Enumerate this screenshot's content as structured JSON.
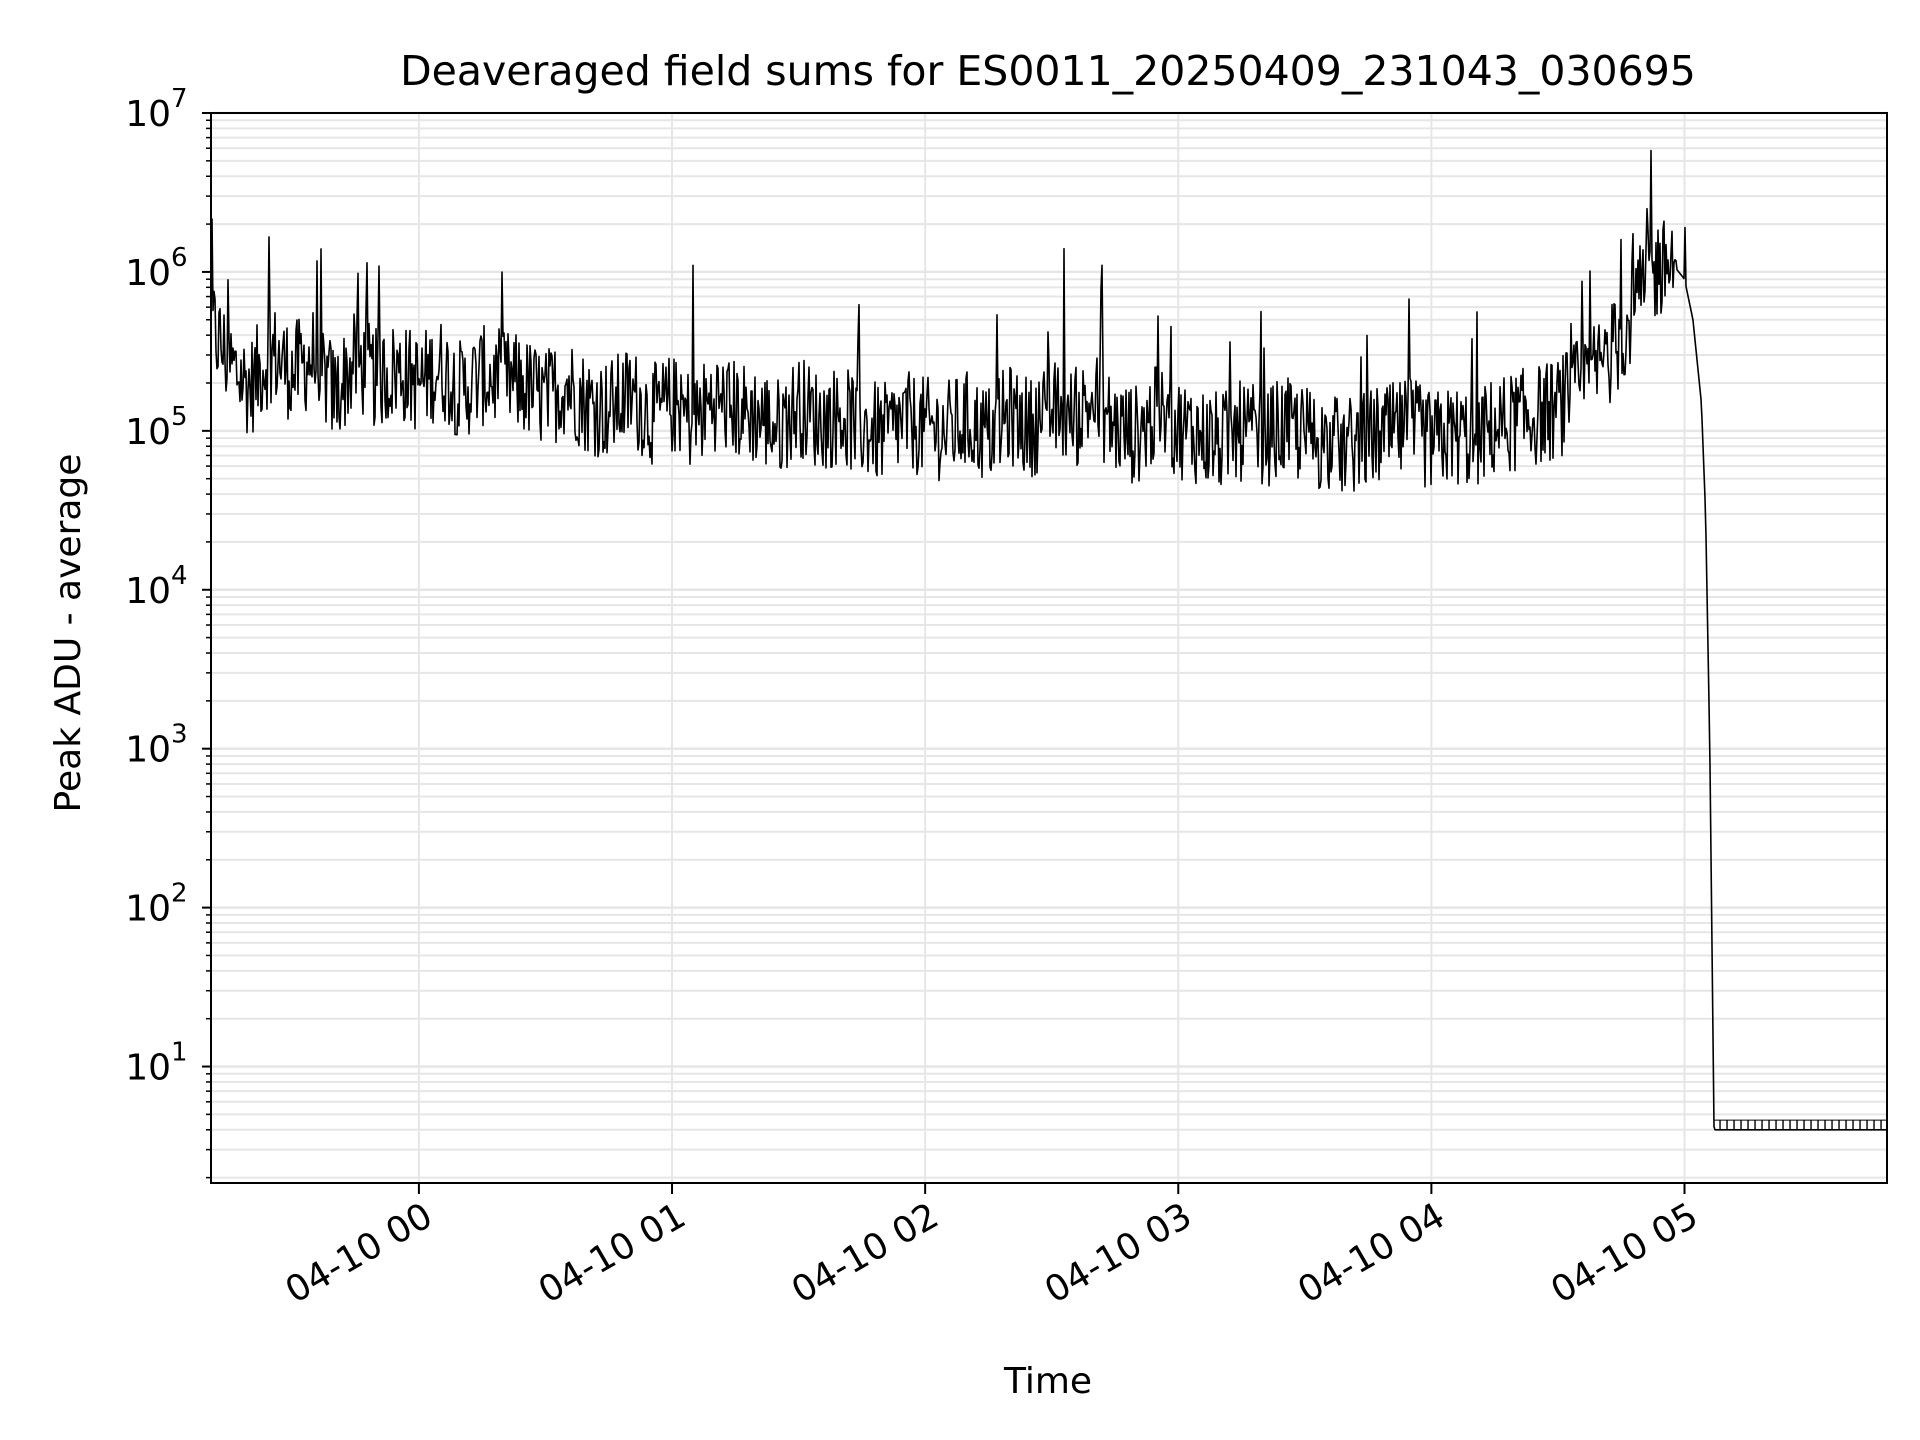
{
  "chart_data": {
    "type": "line",
    "title": "Deaveraged field sums for ES0011_20250409_231043_030695",
    "xlabel": "Time",
    "ylabel": "Peak ADU - average",
    "y_scale": "log",
    "ylim": [
      1.85,
      10000000
    ],
    "xlim": [
      "2025-04-09 23:10:43",
      "2025-04-10 05:48:00"
    ],
    "x_ticks": [
      {
        "value": "2025-04-10 00:00",
        "label": "04-10 00"
      },
      {
        "value": "2025-04-10 01:00",
        "label": "04-10 01"
      },
      {
        "value": "2025-04-10 02:00",
        "label": "04-10 02"
      },
      {
        "value": "2025-04-10 03:00",
        "label": "04-10 03"
      },
      {
        "value": "2025-04-10 04:00",
        "label": "04-10 04"
      },
      {
        "value": "2025-04-10 05:00",
        "label": "04-10 05"
      }
    ],
    "y_ticks": [
      {
        "value": 10,
        "base": "10",
        "exp": "1"
      },
      {
        "value": 100,
        "base": "10",
        "exp": "2"
      },
      {
        "value": 1000,
        "base": "10",
        "exp": "3"
      },
      {
        "value": 10000,
        "base": "10",
        "exp": "4"
      },
      {
        "value": 100000,
        "base": "10",
        "exp": "5"
      },
      {
        "value": 1000000,
        "base": "10",
        "exp": "6"
      },
      {
        "value": 10000000,
        "base": "10",
        "exp": "7"
      }
    ],
    "grid": true,
    "grid_minor": true,
    "line_color": "#000000",
    "grid_color": "#e6e6e6",
    "series": [
      {
        "x": [
          "2025-04-09 23:10:43",
          "2025-04-09 23:15",
          "2025-04-09 23:20",
          "2025-04-09 23:25",
          "2025-04-09 23:30",
          "2025-04-09 23:35",
          "2025-04-09 23:40",
          "2025-04-09 23:45",
          "2025-04-09 23:50",
          "2025-04-09 23:55",
          "2025-04-10 00:00",
          "2025-04-10 00:05",
          "2025-04-10 00:10",
          "2025-04-10 00:15",
          "2025-04-10 00:20",
          "2025-04-10 00:25",
          "2025-04-10 00:30",
          "2025-04-10 00:35",
          "2025-04-10 00:40",
          "2025-04-10 00:45",
          "2025-04-10 00:50",
          "2025-04-10 00:55",
          "2025-04-10 01:00",
          "2025-04-10 01:05",
          "2025-04-10 01:10",
          "2025-04-10 01:15",
          "2025-04-10 01:20",
          "2025-04-10 01:25",
          "2025-04-10 01:30",
          "2025-04-10 01:35",
          "2025-04-10 01:40",
          "2025-04-10 01:45",
          "2025-04-10 01:50",
          "2025-04-10 01:55",
          "2025-04-10 02:00",
          "2025-04-10 02:05",
          "2025-04-10 02:10",
          "2025-04-10 02:15",
          "2025-04-10 02:20",
          "2025-04-10 02:25",
          "2025-04-10 02:30",
          "2025-04-10 02:35",
          "2025-04-10 02:40",
          "2025-04-10 02:45",
          "2025-04-10 02:50",
          "2025-04-10 02:55",
          "2025-04-10 03:00",
          "2025-04-10 03:05",
          "2025-04-10 03:10",
          "2025-04-10 03:15",
          "2025-04-10 03:20",
          "2025-04-10 03:25",
          "2025-04-10 03:30",
          "2025-04-10 03:35",
          "2025-04-10 03:40",
          "2025-04-10 03:45",
          "2025-04-10 03:50",
          "2025-04-10 03:55",
          "2025-04-10 04:00",
          "2025-04-10 04:05",
          "2025-04-10 04:10",
          "2025-04-10 04:15",
          "2025-04-10 04:20",
          "2025-04-10 04:25",
          "2025-04-10 04:30",
          "2025-04-10 04:35",
          "2025-04-10 04:40",
          "2025-04-10 04:45",
          "2025-04-10 04:48",
          "2025-04-10 04:50",
          "2025-04-10 04:52",
          "2025-04-10 04:54",
          "2025-04-10 04:56",
          "2025-04-10 04:58",
          "2025-04-10 05:00",
          "2025-04-10 05:02",
          "2025-04-10 05:04",
          "2025-04-10 05:05",
          "2025-04-10 05:06",
          "2025-04-10 05:07",
          "2025-04-10 05:10",
          "2025-04-10 05:20",
          "2025-04-10 05:30",
          "2025-04-10 05:40",
          "2025-04-10 05:48"
        ],
        "values": [
          450000,
          250000,
          180000,
          300000,
          220000,
          280000,
          160000,
          260000,
          200000,
          230000,
          190000,
          240000,
          170000,
          210000,
          200000,
          180000,
          150000,
          190000,
          140000,
          130000,
          160000,
          120000,
          140000,
          110000,
          150000,
          130000,
          120000,
          100000,
          140000,
          110000,
          120000,
          100000,
          90000,
          110000,
          100000,
          95000,
          110000,
          90000,
          120000,
          100000,
          130000,
          110000,
          150000,
          100000,
          90000,
          120000,
          100000,
          90000,
          80000,
          95000,
          85000,
          100000,
          90000,
          80000,
          75000,
          85000,
          90000,
          100000,
          80000,
          90000,
          85000,
          100000,
          110000,
          120000,
          130000,
          180000,
          250000,
          350000,
          600000,
          700000,
          900000,
          1000000,
          1100000,
          1050000,
          900000,
          500000,
          150000,
          30000,
          1000,
          4,
          4,
          4,
          4,
          4,
          4
        ],
        "noise_band": [
          0.5,
          2.2
        ],
        "spikes": [
          {
            "x": "2025-04-10 01:05",
            "value": 1100000
          },
          {
            "x": "2025-04-10 02:33",
            "value": 1400000
          },
          {
            "x": "2025-04-10 02:42",
            "value": 1100000
          },
          {
            "x": "2025-04-10 04:45",
            "value": 1600000
          },
          {
            "x": "2025-04-10 04:52",
            "value": 5800000
          },
          {
            "x": "2025-04-10 04:51",
            "value": 2500000
          },
          {
            "x": "2025-04-10 05:00",
            "value": 1900000
          }
        ]
      }
    ]
  }
}
